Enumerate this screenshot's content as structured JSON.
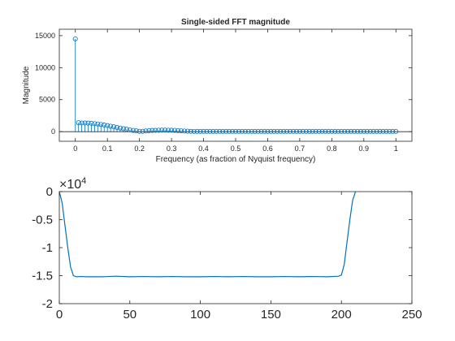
{
  "figure": {
    "background": "#ffffff",
    "axis_color": "#262626",
    "series_color": "#0072bd"
  },
  "chart_data": [
    {
      "type": "stem",
      "title": "Single-sided FFT magnitude",
      "xlabel": "Frequency (as fraction of Nyquist frequency)",
      "ylabel": "Magnitude",
      "xlim": [
        -0.05,
        1.05
      ],
      "ylim": [
        -1500,
        16000
      ],
      "xticks": [
        0,
        0.1,
        0.2,
        0.3,
        0.4,
        0.5,
        0.6,
        0.7,
        0.8,
        0.9,
        1
      ],
      "xtick_labels": [
        "0",
        "0.1",
        "0.2",
        "0.3",
        "0.4",
        "0.5",
        "0.6",
        "0.7",
        "0.8",
        "0.9",
        "1"
      ],
      "yticks": [
        0,
        5000,
        10000,
        15000
      ],
      "ytick_labels": [
        "0",
        "5000",
        "10000",
        "15000"
      ],
      "grid": false,
      "marker": "open-circle",
      "x": [
        0,
        0.01,
        0.02,
        0.03,
        0.04,
        0.05,
        0.06,
        0.07,
        0.08,
        0.09,
        0.1,
        0.11,
        0.12,
        0.13,
        0.14,
        0.15,
        0.16,
        0.17,
        0.18,
        0.19,
        0.2,
        0.21,
        0.22,
        0.23,
        0.24,
        0.25,
        0.26,
        0.27,
        0.28,
        0.29,
        0.3,
        0.31,
        0.32,
        0.33,
        0.34,
        0.35,
        0.36,
        0.37,
        0.38,
        0.39,
        0.4,
        0.41,
        0.42,
        0.43,
        0.44,
        0.45,
        0.46,
        0.47,
        0.48,
        0.49,
        0.5,
        0.51,
        0.52,
        0.53,
        0.54,
        0.55,
        0.56,
        0.57,
        0.58,
        0.59,
        0.6,
        0.61,
        0.62,
        0.63,
        0.64,
        0.65,
        0.66,
        0.67,
        0.68,
        0.69,
        0.7,
        0.71,
        0.72,
        0.73,
        0.74,
        0.75,
        0.76,
        0.77,
        0.78,
        0.79,
        0.8,
        0.81,
        0.82,
        0.83,
        0.84,
        0.85,
        0.86,
        0.87,
        0.88,
        0.89,
        0.9,
        0.91,
        0.92,
        0.93,
        0.94,
        0.95,
        0.96,
        0.97,
        0.98,
        0.99,
        1
      ],
      "y": [
        14500,
        1400,
        1350,
        1350,
        1330,
        1300,
        1250,
        1200,
        1120,
        1030,
        950,
        850,
        760,
        650,
        560,
        460,
        380,
        290,
        200,
        130,
        60,
        60,
        110,
        150,
        190,
        210,
        230,
        240,
        240,
        230,
        220,
        200,
        170,
        140,
        100,
        70,
        50,
        40,
        30,
        30,
        30,
        30,
        30,
        30,
        30,
        30,
        30,
        30,
        30,
        30,
        30,
        30,
        30,
        30,
        30,
        30,
        30,
        30,
        30,
        30,
        30,
        30,
        30,
        30,
        30,
        30,
        30,
        30,
        30,
        30,
        30,
        30,
        30,
        30,
        30,
        30,
        30,
        30,
        30,
        30,
        30,
        30,
        30,
        30,
        30,
        30,
        30,
        30,
        30,
        30,
        30,
        30,
        30,
        30,
        30,
        30,
        30,
        30,
        30,
        30,
        30
      ]
    },
    {
      "type": "line",
      "title": "",
      "xlabel": "",
      "ylabel": "",
      "xlim": [
        0,
        250
      ],
      "ylim": [
        -20000,
        0
      ],
      "xticks": [
        0,
        50,
        100,
        150,
        200,
        250
      ],
      "xtick_labels": [
        "0",
        "50",
        "100",
        "150",
        "200",
        "250"
      ],
      "yticks": [
        0,
        -5000,
        -10000,
        -15000,
        -20000
      ],
      "ytick_labels": [
        "0",
        "-0.5",
        "-1",
        "-1.5",
        "-2"
      ],
      "y_exponent_label": "×10",
      "y_exponent_power": "4",
      "grid": false,
      "x": [
        0,
        2,
        4,
        6,
        8,
        10,
        12,
        15,
        20,
        30,
        40,
        50,
        60,
        70,
        80,
        90,
        100,
        110,
        120,
        130,
        140,
        150,
        160,
        170,
        180,
        190,
        198,
        200,
        202,
        204,
        206,
        208,
        210
      ],
      "y": [
        0,
        -2000,
        -6000,
        -10000,
        -13500,
        -15000,
        -15200,
        -15150,
        -15200,
        -15200,
        -15100,
        -15200,
        -15150,
        -15200,
        -15150,
        -15200,
        -15200,
        -15150,
        -15200,
        -15150,
        -15200,
        -15200,
        -15150,
        -15200,
        -15150,
        -15200,
        -15100,
        -14900,
        -13000,
        -9000,
        -5000,
        -1500,
        0
      ]
    }
  ]
}
